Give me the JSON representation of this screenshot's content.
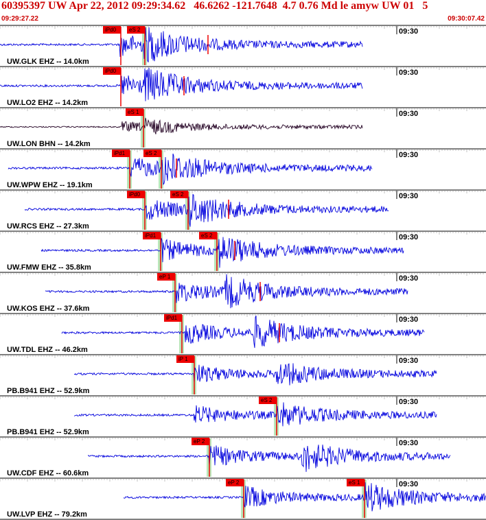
{
  "header": {
    "title": "60395397 UW Apr 22, 2012 09:29:34.62   46.6262 -121.7648  4.7 0.76 Md le amyw UW 01   5",
    "start_time": "09:29:27.22",
    "end_time": "09:30:07.42"
  },
  "colors": {
    "title_red": "#cc0000",
    "trace_blue": "#0000dd",
    "trace_dark": "#220022",
    "pick_red": "#ee0000",
    "pick_green": "#b9e6b9",
    "tick_gray": "#999999"
  },
  "traces": [
    {
      "station": "UW.GLK EHZ -- 14.0km",
      "time_mark": "09:30",
      "amp": 1.0,
      "start": 0,
      "end": 528,
      "onset": 175,
      "s_onset": 210,
      "color": "blue",
      "picks": [
        {
          "label": "iPd0",
          "t": 176,
          "green": false
        },
        {
          "label": "eS 2",
          "t": 211,
          "green": true
        }
      ],
      "red_marks": [
        303
      ]
    },
    {
      "station": "UW.LO2 EHZ -- 14.2km",
      "time_mark": "09:30",
      "amp": 1.0,
      "start": 0,
      "end": 528,
      "onset": 177,
      "s_onset": 211,
      "color": "blue",
      "picks": [
        {
          "label": "iPd0",
          "t": 176,
          "green": false
        }
      ],
      "red_marks": [
        268
      ]
    },
    {
      "station": "UW.LON BHN -- 14.2km",
      "time_mark": "09:30",
      "amp": 0.7,
      "start": 0,
      "end": 528,
      "onset": 178,
      "s_onset": 210,
      "color": "dark",
      "picks": [
        {
          "label": "eS 1",
          "t": 209,
          "green": true
        }
      ],
      "red_marks": []
    },
    {
      "station": "UW.WPW EHZ -- 19.1km",
      "time_mark": "09:30",
      "amp": 1.0,
      "start": 12,
      "end": 542,
      "onset": 190,
      "s_onset": 236,
      "color": "blue",
      "picks": [
        {
          "label": "iPd1",
          "t": 189,
          "green": true
        },
        {
          "label": "eS 2",
          "t": 235,
          "green": true
        }
      ],
      "red_marks": [
        257
      ]
    },
    {
      "station": "UW.RCS EHZ -- 27.3km",
      "time_mark": "09:30",
      "amp": 1.0,
      "start": 36,
      "end": 566,
      "onset": 212,
      "s_onset": 275,
      "color": "blue",
      "picks": [
        {
          "label": "iPd0",
          "t": 211,
          "green": true
        },
        {
          "label": "eS 2",
          "t": 274,
          "green": true
        }
      ],
      "red_marks": [
        333
      ]
    },
    {
      "station": "UW.FMW EHZ -- 35.8km",
      "time_mark": "09:30",
      "amp": 1.0,
      "start": 60,
      "end": 588,
      "onset": 235,
      "s_onset": 317,
      "color": "blue",
      "picks": [
        {
          "label": "iPd1",
          "t": 234,
          "green": true
        },
        {
          "label": "eS 2",
          "t": 316,
          "green": true
        }
      ],
      "red_marks": [
        342
      ]
    },
    {
      "station": "UW.KOS EHZ -- 37.6km",
      "time_mark": "09:30",
      "amp": 1.0,
      "start": 66,
      "end": 594,
      "onset": 256,
      "s_onset": 328,
      "color": "blue",
      "picks": [
        {
          "label": "eP 1",
          "t": 255,
          "green": true
        }
      ],
      "red_marks": [
        379
      ]
    },
    {
      "station": "UW.TDL EHZ -- 46.2km",
      "time_mark": "09:30",
      "amp": 1.0,
      "start": 90,
      "end": 618,
      "onset": 270,
      "s_onset": 370,
      "color": "blue",
      "picks": [
        {
          "label": "iPd1",
          "t": 265,
          "green": true
        }
      ],
      "red_marks": [
        407
      ]
    },
    {
      "station": "PB.B941 EHZ -- 52.9km",
      "time_mark": "09:30",
      "amp": 0.8,
      "start": 108,
      "end": 636,
      "onset": 283,
      "s_onset": 403,
      "color": "blue",
      "picks": [
        {
          "label": "iP 1",
          "t": 283,
          "green": true
        }
      ],
      "red_marks": []
    },
    {
      "station": "PB.B941 EH2 -- 52.9km",
      "time_mark": "09:30",
      "amp": 0.8,
      "start": 108,
      "end": 636,
      "onset": 283,
      "s_onset": 404,
      "color": "blue",
      "picks": [
        {
          "label": "eS 2",
          "t": 403,
          "green": true
        }
      ],
      "red_marks": []
    },
    {
      "station": "UW.CDF EHZ -- 60.6km",
      "time_mark": "09:30",
      "amp": 1.0,
      "start": 128,
      "end": 656,
      "onset": 305,
      "s_onset": 440,
      "color": "blue",
      "picks": [
        {
          "label": "eP 2",
          "t": 305,
          "green": true
        }
      ],
      "red_marks": []
    },
    {
      "station": "UW.LVP EHZ -- 79.2km",
      "time_mark": "09:30",
      "amp": 1.0,
      "start": 180,
      "end": 708,
      "onset": 356,
      "s_onset": 532,
      "color": "blue",
      "picks": [
        {
          "label": "eP 2",
          "t": 355,
          "green": true
        },
        {
          "label": "eS 1",
          "t": 531,
          "green": true
        }
      ],
      "red_marks": []
    }
  ]
}
